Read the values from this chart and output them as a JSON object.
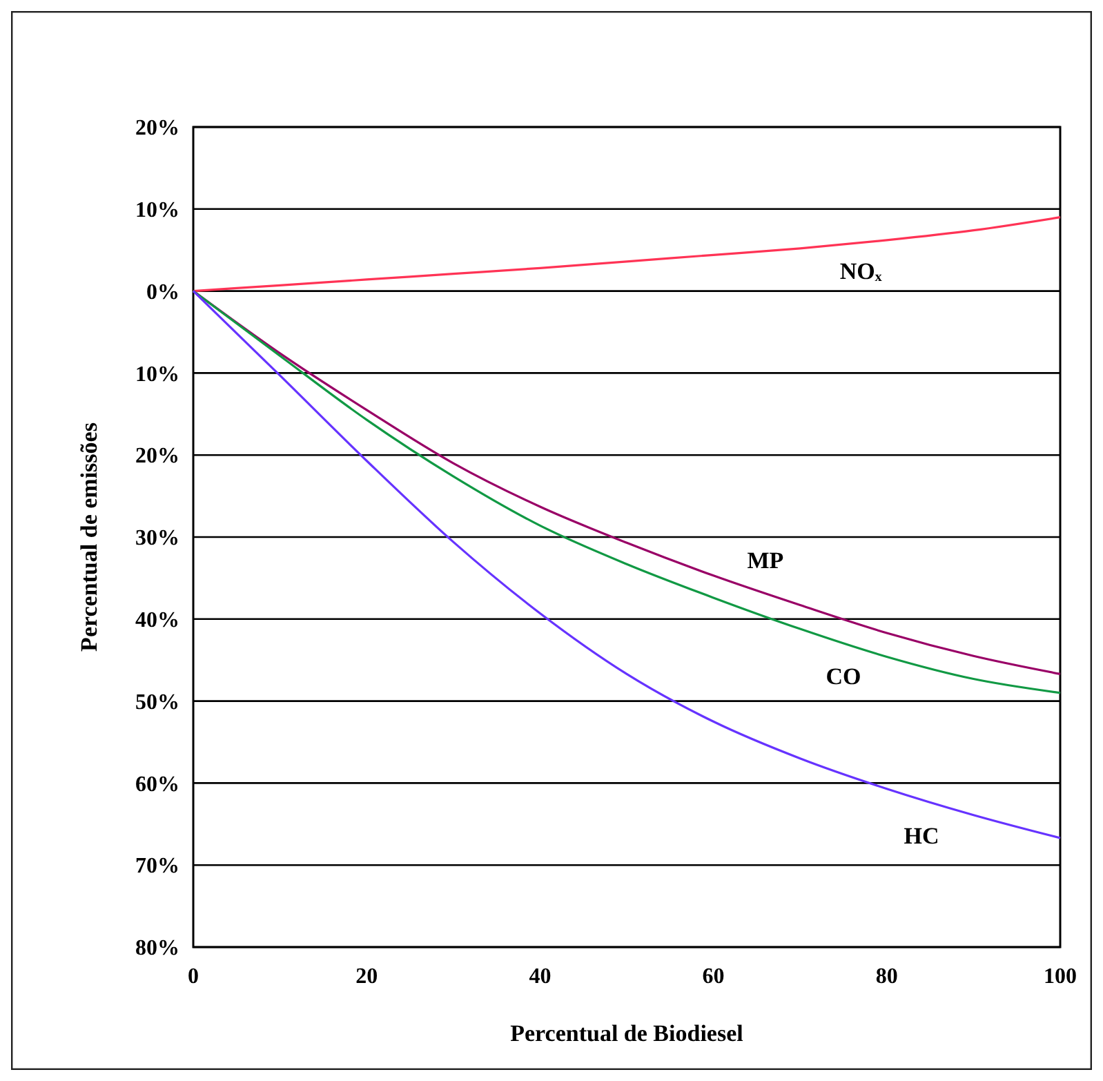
{
  "chart_data": {
    "type": "line",
    "xlabel": "Percentual de Biodiesel",
    "ylabel": "Percentual de emissões",
    "x": [
      0,
      10,
      20,
      30,
      40,
      50,
      60,
      70,
      80,
      90,
      100
    ],
    "series": [
      {
        "name": "NOₓ",
        "color": "#ff3355",
        "values": [
          0,
          0.7,
          1.4,
          2.1,
          2.8,
          3.6,
          4.4,
          5.2,
          6.2,
          7.4,
          9
        ]
      },
      {
        "name": "MP",
        "color": "#990066",
        "values": [
          0,
          -7.6,
          -14.5,
          -21,
          -26.3,
          -30.7,
          -34.7,
          -38.3,
          -41.7,
          -44.5,
          -46.7
        ]
      },
      {
        "name": "CO",
        "color": "#119944",
        "values": [
          0,
          -7.9,
          -15.7,
          -22.6,
          -28.6,
          -33.3,
          -37.4,
          -41.2,
          -44.6,
          -47.3,
          -49
        ]
      },
      {
        "name": "HC",
        "color": "#6633ff",
        "values": [
          0,
          -10.3,
          -20.7,
          -30.6,
          -39.3,
          -46.7,
          -52.5,
          -57,
          -60.7,
          -63.9,
          -66.7
        ]
      }
    ],
    "xlim": [
      0,
      100
    ],
    "xticks": [
      0,
      20,
      40,
      60,
      80,
      100
    ],
    "ylim": [
      -80,
      20
    ],
    "yticks": [
      {
        "value": 20,
        "label": "20%"
      },
      {
        "value": 10,
        "label": "10%"
      },
      {
        "value": 0,
        "label": "0%"
      },
      {
        "value": -10,
        "label": "10%"
      },
      {
        "value": -20,
        "label": "20%"
      },
      {
        "value": -30,
        "label": "30%"
      },
      {
        "value": -40,
        "label": "40%"
      },
      {
        "value": -50,
        "label": "50%"
      },
      {
        "value": -60,
        "label": "60%"
      },
      {
        "value": -70,
        "label": "70%"
      },
      {
        "value": -80,
        "label": "80%"
      }
    ],
    "grid": "y",
    "marker": "none",
    "line_style": "solid"
  }
}
